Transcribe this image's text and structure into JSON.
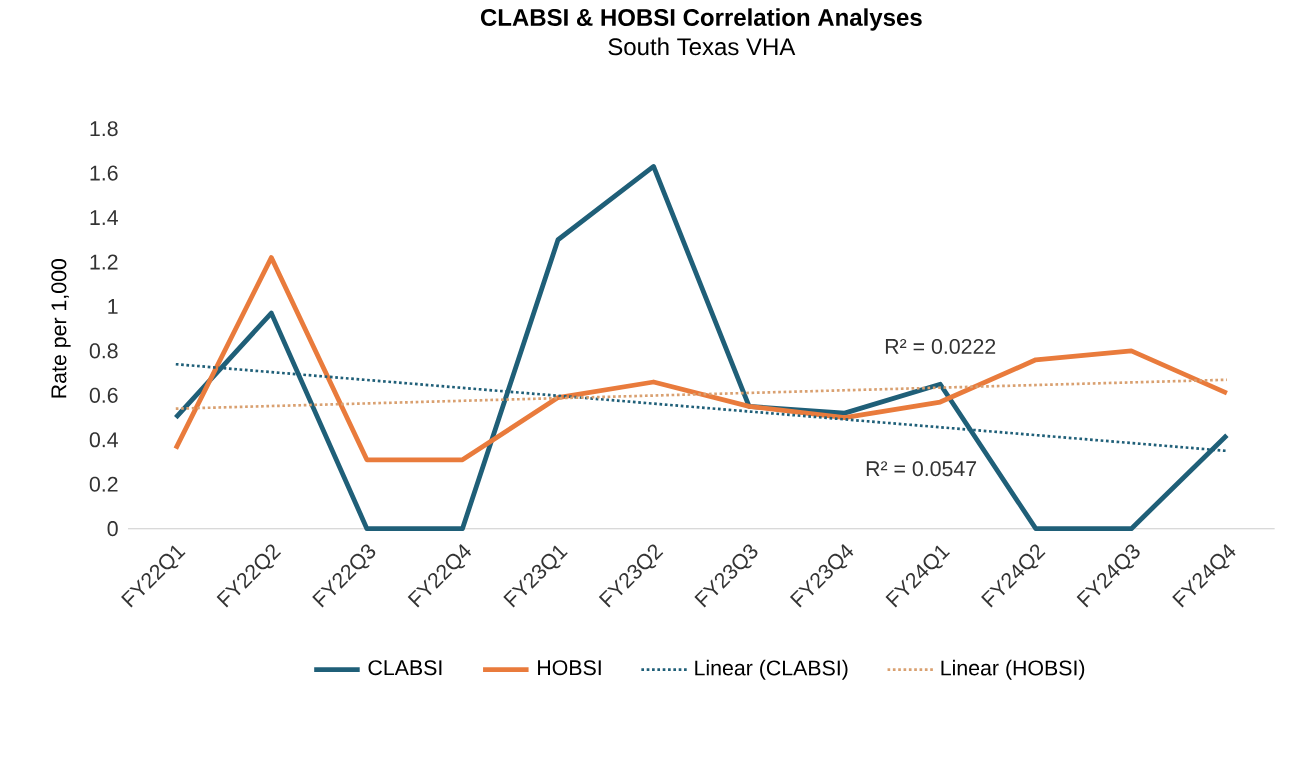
{
  "chart_data": {
    "type": "line",
    "title": "CLABSI & HOBSI Correlation Analyses",
    "subtitle": "South Texas VHA",
    "ylabel": "Rate per 1,000",
    "categories": [
      "FY22Q1",
      "FY22Q2",
      "FY22Q3",
      "FY22Q4",
      "FY23Q1",
      "FY23Q2",
      "FY23Q3",
      "FY23Q4",
      "FY24Q1",
      "FY24Q2",
      "FY24Q3",
      "FY24Q4"
    ],
    "series": [
      {
        "name": "CLABSI",
        "color": "#1f5f78",
        "values": [
          0.5,
          0.97,
          0,
          0,
          1.3,
          1.63,
          0.55,
          0.52,
          0.65,
          0,
          0,
          0.42
        ]
      },
      {
        "name": "HOBSI",
        "color": "#e97b3c",
        "values": [
          0.36,
          1.22,
          0.31,
          0.31,
          0.59,
          0.66,
          0.55,
          0.5,
          0.57,
          0.76,
          0.8,
          0.61
        ]
      },
      {
        "name": "Linear (CLABSI)",
        "color": "#1f5f78",
        "line_style": "dotted",
        "x": [
          "FY22Q1",
          "FY24Q4"
        ],
        "values": [
          0.74,
          0.35
        ]
      },
      {
        "name": "Linear (HOBSI)",
        "color": "#d9a070",
        "line_style": "dotted",
        "x": [
          "FY22Q1",
          "FY24Q4"
        ],
        "values": [
          0.54,
          0.67
        ]
      }
    ],
    "annotations": [
      "R² = 0.0222",
      "R² = 0.0547"
    ],
    "ylim": [
      0,
      1.8
    ],
    "yticks": [
      0,
      0.2,
      0.4,
      0.6,
      0.8,
      1,
      1.2,
      1.4,
      1.6,
      1.8
    ],
    "legend": "bottom",
    "marker": "none",
    "line_style": "solid"
  }
}
